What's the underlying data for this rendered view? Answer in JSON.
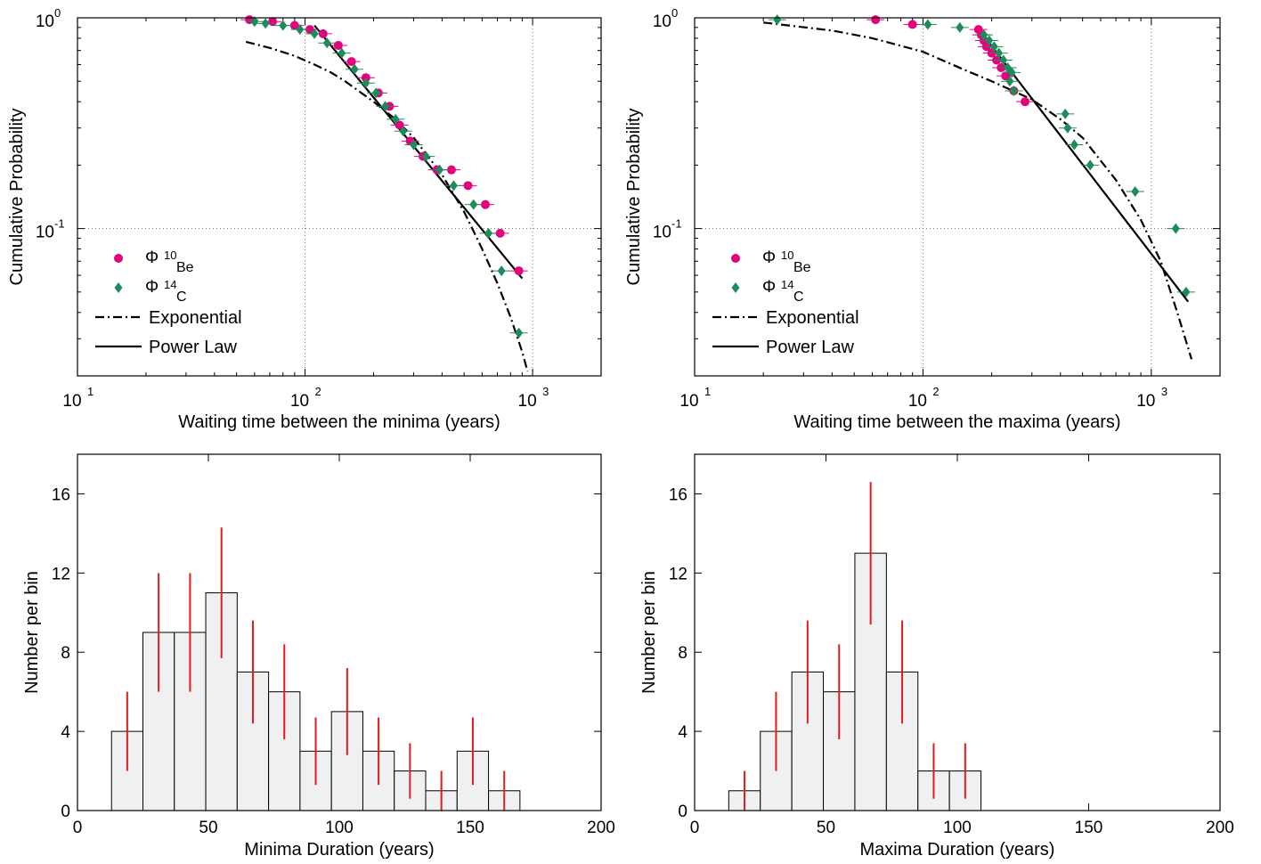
{
  "chart_data": [
    {
      "type": "scatter",
      "xscale": "log",
      "yscale": "log",
      "xlim": [
        10,
        2000
      ],
      "ylim": [
        0.02,
        1
      ],
      "xlabel": "Waiting time between the minima (years)",
      "ylabel": "Cumulative Probability",
      "xticks": [
        {
          "value": 10,
          "label": "10",
          "exp": "1"
        },
        {
          "value": 100,
          "label": "10",
          "exp": "2"
        },
        {
          "value": 1000,
          "label": "10",
          "exp": "3"
        }
      ],
      "yticks": [
        {
          "value": 0.1,
          "label": "10",
          "exp": "-1"
        },
        {
          "value": 1,
          "label": "10",
          "exp": "0"
        }
      ],
      "grid": "dotted",
      "legend_position": "bottom-left",
      "legend": [
        {
          "symbol": "Φ",
          "sup": "10",
          "sub": "Be"
        },
        {
          "symbol": "Φ",
          "sup": "14",
          "sub": "C"
        },
        {
          "label": "Exponential"
        },
        {
          "label": "Power Law"
        }
      ],
      "series": [
        {
          "color": "#e6007e",
          "marker": "circle",
          "x": [
            57,
            72,
            90,
            105,
            120,
            140,
            160,
            185,
            210,
            235,
            260,
            290,
            330,
            380,
            440,
            520,
            620,
            720,
            870
          ],
          "y": [
            0.98,
            0.96,
            0.92,
            0.88,
            0.84,
            0.74,
            0.62,
            0.52,
            0.44,
            0.38,
            0.31,
            0.26,
            0.22,
            0.19,
            0.19,
            0.16,
            0.13,
            0.095,
            0.063
          ]
        },
        {
          "color": "#1e8c5a",
          "marker": "diamond",
          "x": [
            60,
            67,
            80,
            95,
            110,
            125,
            145,
            165,
            185,
            205,
            225,
            250,
            270,
            300,
            340,
            390,
            450,
            550,
            640,
            730,
            870
          ],
          "y": [
            0.96,
            0.94,
            0.92,
            0.88,
            0.84,
            0.76,
            0.68,
            0.57,
            0.49,
            0.44,
            0.38,
            0.33,
            0.29,
            0.25,
            0.22,
            0.19,
            0.16,
            0.13,
            0.095,
            0.063,
            0.032
          ]
        }
      ],
      "fits": [
        {
          "name": "Exponential",
          "style": "dash-dot",
          "x": [
            55,
            70,
            90,
            110,
            130,
            150,
            200,
            250,
            300,
            400,
            500,
            600,
            700,
            800,
            900,
            950
          ],
          "y": [
            0.77,
            0.72,
            0.66,
            0.6,
            0.55,
            0.5,
            0.4,
            0.33,
            0.27,
            0.18,
            0.12,
            0.08,
            0.055,
            0.038,
            0.026,
            0.021
          ]
        },
        {
          "name": "Power Law",
          "style": "solid",
          "x": [
            110,
            900
          ],
          "y": [
            0.92,
            0.058
          ]
        }
      ]
    },
    {
      "type": "scatter",
      "xscale": "log",
      "yscale": "log",
      "xlim": [
        10,
        2000
      ],
      "ylim": [
        0.02,
        1
      ],
      "xlabel": "Waiting time between the maxima (years)",
      "ylabel": "Cumulative Probability",
      "xticks": [
        {
          "value": 10,
          "label": "10",
          "exp": "1"
        },
        {
          "value": 100,
          "label": "10",
          "exp": "2"
        },
        {
          "value": 1000,
          "label": "10",
          "exp": "3"
        }
      ],
      "yticks": [
        {
          "value": 0.1,
          "label": "10",
          "exp": "-1"
        },
        {
          "value": 1,
          "label": "10",
          "exp": "0"
        }
      ],
      "grid": "dotted",
      "legend_position": "bottom-left",
      "legend": [
        {
          "symbol": "Φ",
          "sup": "10",
          "sub": "Be"
        },
        {
          "symbol": "Φ",
          "sup": "14",
          "sub": "C"
        },
        {
          "label": "Exponential"
        },
        {
          "label": "Power Law"
        }
      ],
      "series": [
        {
          "color": "#e6007e",
          "marker": "circle",
          "x": [
            62,
            90,
            175,
            180,
            185,
            190,
            200,
            210,
            220,
            230,
            250,
            280
          ],
          "y": [
            0.98,
            0.93,
            0.88,
            0.83,
            0.78,
            0.73,
            0.68,
            0.63,
            0.58,
            0.53,
            0.45,
            0.4
          ]
        },
        {
          "color": "#1e8c5a",
          "marker": "diamond",
          "x": [
            23,
            105,
            145,
            185,
            195,
            205,
            215,
            225,
            235,
            245,
            240,
            250,
            420,
            430,
            460,
            540,
            850,
            1280,
            1420
          ],
          "y": [
            0.98,
            0.93,
            0.9,
            0.83,
            0.78,
            0.73,
            0.68,
            0.63,
            0.58,
            0.55,
            0.5,
            0.45,
            0.35,
            0.3,
            0.25,
            0.2,
            0.15,
            0.1,
            0.05
          ]
        }
      ],
      "fits": [
        {
          "name": "Exponential",
          "style": "dash-dot",
          "x": [
            20,
            40,
            60,
            100,
            150,
            200,
            300,
            400,
            500,
            700,
            900,
            1100,
            1300,
            1500
          ],
          "y": [
            0.95,
            0.87,
            0.8,
            0.69,
            0.57,
            0.5,
            0.41,
            0.33,
            0.27,
            0.17,
            0.11,
            0.07,
            0.04,
            0.024
          ]
        },
        {
          "name": "Power Law",
          "style": "solid",
          "x": [
            180,
            1450
          ],
          "y": [
            0.85,
            0.045
          ]
        }
      ]
    },
    {
      "type": "bar",
      "xlim": [
        0,
        200
      ],
      "ylim": [
        0,
        18
      ],
      "xlabel": "Minima Duration (years)",
      "ylabel": "Number per bin",
      "xticks": [
        0,
        50,
        100,
        150,
        200
      ],
      "yticks": [
        0,
        4,
        8,
        12,
        16
      ],
      "bin_width": 12,
      "bin_start": 13,
      "values": [
        4,
        9,
        9,
        11,
        7,
        6,
        3,
        5,
        3,
        2,
        1,
        3,
        1
      ],
      "error_color": "#e41a1c",
      "errors": [
        [
          2,
          6
        ],
        [
          6,
          12
        ],
        [
          6,
          12
        ],
        [
          7.7,
          14.3
        ],
        [
          4.4,
          9.6
        ],
        [
          3.6,
          8.4
        ],
        [
          1.3,
          4.7
        ],
        [
          2.8,
          7.2
        ],
        [
          1.3,
          4.7
        ],
        [
          0.6,
          3.4
        ],
        [
          0,
          2
        ],
        [
          1.3,
          4.7
        ],
        [
          0,
          2
        ]
      ]
    },
    {
      "type": "bar",
      "xlim": [
        0,
        200
      ],
      "ylim": [
        0,
        18
      ],
      "xlabel": "Maxima Duration (years)",
      "ylabel": "Number per bin",
      "xticks": [
        0,
        50,
        100,
        150,
        200
      ],
      "yticks": [
        0,
        4,
        8,
        12,
        16
      ],
      "bin_width": 12,
      "bin_start": 13,
      "values": [
        1,
        4,
        7,
        6,
        13,
        7,
        2,
        2
      ],
      "error_color": "#e41a1c",
      "errors": [
        [
          0,
          2
        ],
        [
          2,
          6
        ],
        [
          4.4,
          9.6
        ],
        [
          3.6,
          8.4
        ],
        [
          9.4,
          16.6
        ],
        [
          4.4,
          9.6
        ],
        [
          0.6,
          3.4
        ],
        [
          0.6,
          3.4
        ]
      ]
    }
  ]
}
